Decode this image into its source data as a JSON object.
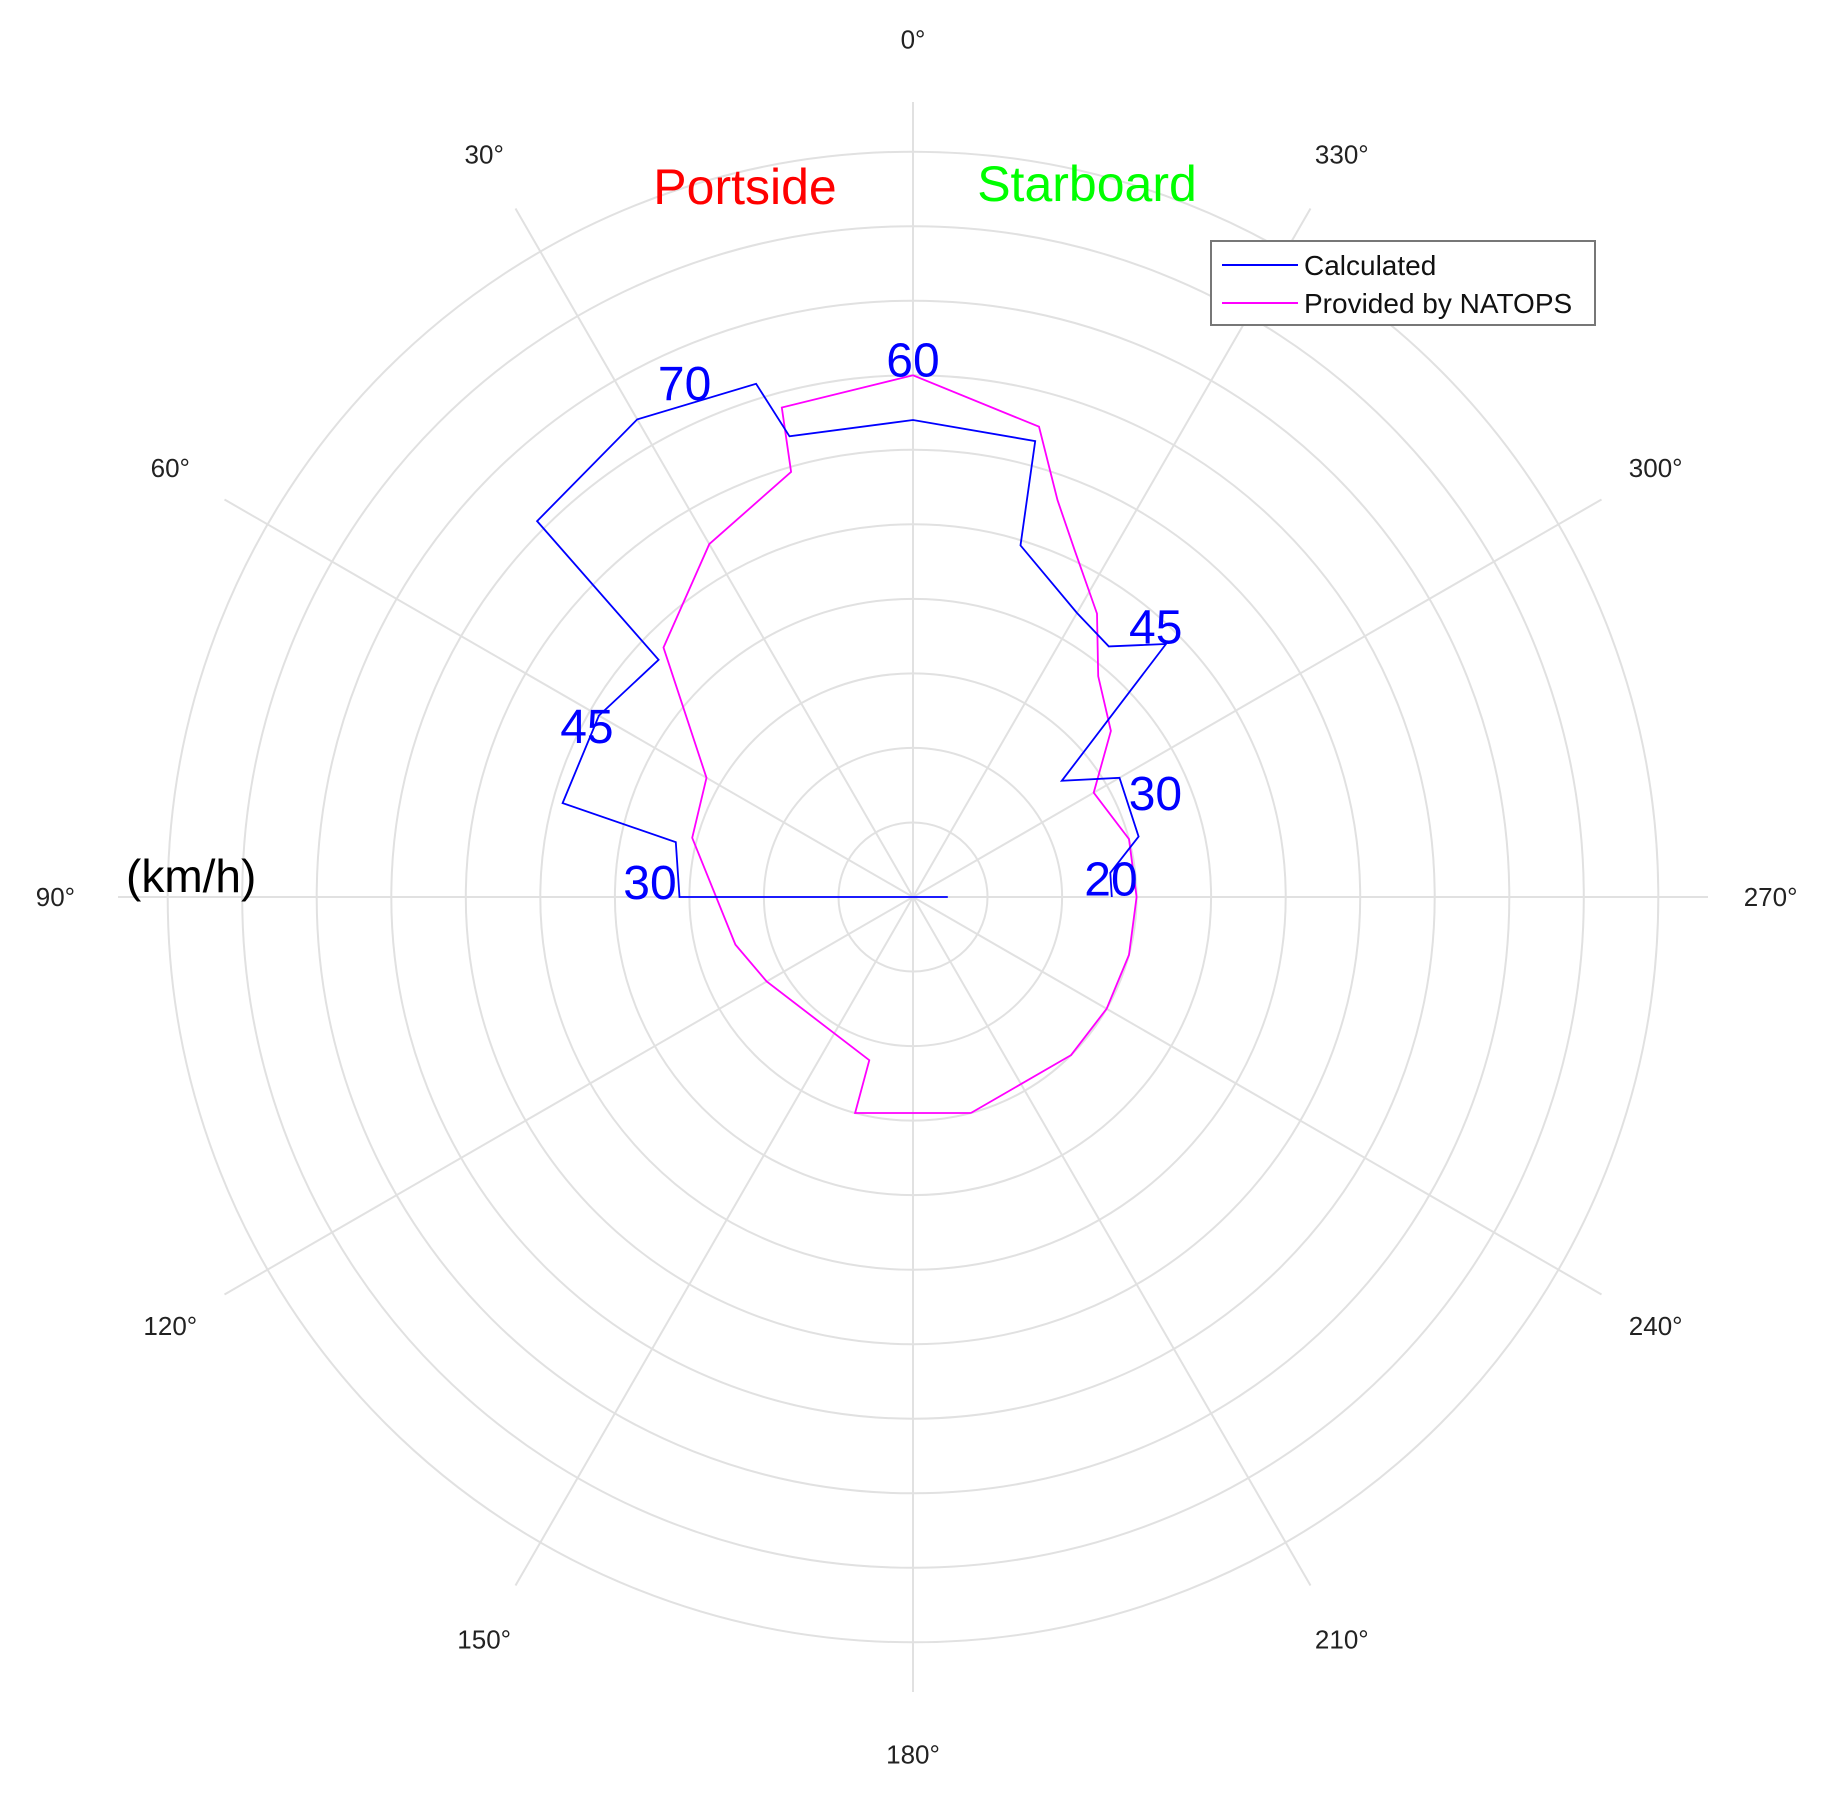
{
  "chart_data": {
    "type": "polar-step",
    "angular_ticks": [
      "0°",
      "30°",
      "60°",
      "90°",
      "120°",
      "150°",
      "180°",
      "210°",
      "240°",
      "270°",
      "300°",
      "330°"
    ],
    "angular_direction": "counterclockwise",
    "zero_location": "top",
    "radial_range": [
      0,
      80
    ],
    "radial_grid_step": 7.5,
    "radial_tick_labels_shown": false,
    "grid": true,
    "unit_label": "(km/h)",
    "side_labels": [
      {
        "text": "Portside",
        "color": "#ff0000"
      },
      {
        "text": "Starboard",
        "color": "#00ff00"
      }
    ],
    "legend": {
      "placement": "top-right",
      "entries": [
        {
          "label": "Calculated",
          "color": "#0000ff"
        },
        {
          "label": "Provided by NATOPS",
          "color": "#ff00ff"
        }
      ]
    },
    "series": [
      {
        "name": "Calculated",
        "color": "#0000ff",
        "points": [
          {
            "angle": 270,
            "r": 20
          },
          {
            "angle": 277,
            "r": 20
          },
          {
            "angle": 285,
            "r": 23.5
          },
          {
            "angle": 300,
            "r": 24
          },
          {
            "angle": 308,
            "r": 19
          },
          {
            "angle": 315,
            "r": 36
          },
          {
            "angle": 322,
            "r": 32
          },
          {
            "angle": 330,
            "r": 33
          },
          {
            "angle": 343,
            "r": 37
          },
          {
            "angle": 345,
            "r": 47.5
          },
          {
            "angle": 0,
            "r": 48
          },
          {
            "angle": 15,
            "r": 48
          },
          {
            "angle": 17,
            "r": 54
          },
          {
            "angle": 30,
            "r": 55.5
          },
          {
            "angle": 45,
            "r": 53.5
          },
          {
            "angle": 47,
            "r": 35
          },
          {
            "angle": 60,
            "r": 36.5
          },
          {
            "angle": 75,
            "r": 36.5
          },
          {
            "angle": 77,
            "r": 24.5
          },
          {
            "angle": 90,
            "r": 23.5
          },
          {
            "angle": 90,
            "r": 3.5
          },
          {
            "angle": 270,
            "r": 3.5
          }
        ],
        "data_labels": [
          {
            "text": "20",
            "angle": 275,
            "r": 20
          },
          {
            "text": "30",
            "angle": 293,
            "r": 26.5
          },
          {
            "text": "45",
            "angle": 318,
            "r": 36.5
          },
          {
            "text": "60",
            "angle": 0,
            "r": 54
          },
          {
            "text": "70",
            "angle": 24,
            "r": 56.5
          },
          {
            "text": "45",
            "angle": 62.5,
            "r": 37
          },
          {
            "text": "30",
            "angle": 87,
            "r": 26.5
          }
        ]
      },
      {
        "name": "Provided by NATOPS",
        "color": "#ff00ff",
        "points": [
          {
            "angle": 195,
            "r": 22.5
          },
          {
            "angle": 225,
            "r": 22.5
          },
          {
            "angle": 240,
            "r": 22.5
          },
          {
            "angle": 255,
            "r": 22.5
          },
          {
            "angle": 270,
            "r": 22.5
          },
          {
            "angle": 285,
            "r": 22.5
          },
          {
            "angle": 300,
            "r": 21
          },
          {
            "angle": 310,
            "r": 26
          },
          {
            "angle": 320,
            "r": 29
          },
          {
            "angle": 327,
            "r": 34
          },
          {
            "angle": 335,
            "r": 38.5
          },
          {
            "angle": 340,
            "r": 42.5
          },
          {
            "angle": 345,
            "r": 49
          },
          {
            "angle": 0,
            "r": 52.5
          },
          {
            "angle": 15,
            "r": 51
          },
          {
            "angle": 16,
            "r": 44.5
          },
          {
            "angle": 30,
            "r": 41
          },
          {
            "angle": 45,
            "r": 35.5
          },
          {
            "angle": 60,
            "r": 24
          },
          {
            "angle": 75,
            "r": 23
          },
          {
            "angle": 105,
            "r": 18.5
          },
          {
            "angle": 120,
            "r": 17
          },
          {
            "angle": 165,
            "r": 17
          },
          {
            "angle": 165,
            "r": 22.5
          },
          {
            "angle": 195,
            "r": 22.5
          }
        ]
      }
    ]
  }
}
